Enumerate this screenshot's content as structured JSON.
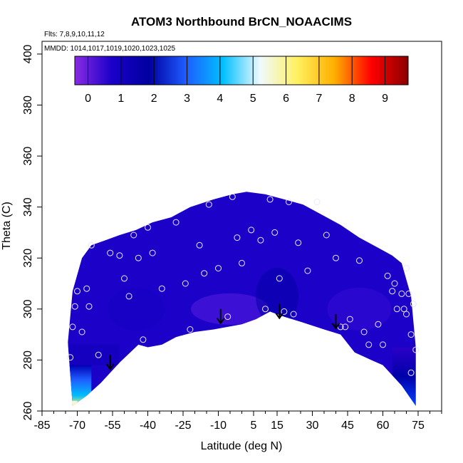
{
  "chart_data": {
    "type": "heatmap",
    "title": "ATOM3 Northbound BrCN_NOAACIMS",
    "subtitle_flights": "Flts: 7,8,9,10,11,12",
    "subtitle_dates": "MMDD: 1014,1017,1019,1020,1023,1025",
    "xlabel": "Latitude (deg N)",
    "ylabel": "Theta (C)",
    "xlim": [
      -85,
      85
    ],
    "ylim": [
      260,
      405
    ],
    "x_ticks": [
      -85,
      -70,
      -55,
      -40,
      -25,
      -10,
      5,
      15,
      30,
      45,
      60,
      75
    ],
    "y_ticks": [
      260,
      280,
      300,
      320,
      340,
      360,
      380,
      400
    ],
    "colorbar": {
      "ticks": [
        0,
        1,
        2,
        3,
        4,
        5,
        6,
        7,
        8,
        9
      ],
      "range": [
        -0.4,
        9.7
      ],
      "colors": [
        "#8a2be2",
        "#1a00c8",
        "#0000a0",
        "#1e5cff",
        "#00bfff",
        "#f0faff",
        "#fff060",
        "#ffb000",
        "#ff0000",
        "#8b0000"
      ]
    },
    "typical_value": 0.7,
    "envelope": {
      "top": [
        [
          -74,
          287
        ],
        [
          -72,
          307
        ],
        [
          -68,
          320
        ],
        [
          -64,
          325
        ],
        [
          -58,
          327
        ],
        [
          -52,
          329
        ],
        [
          -45,
          331
        ],
        [
          -38,
          334
        ],
        [
          -30,
          336
        ],
        [
          -22,
          340
        ],
        [
          -12,
          343
        ],
        [
          -4,
          345
        ],
        [
          2,
          346
        ],
        [
          10,
          345
        ],
        [
          18,
          343
        ],
        [
          26,
          341
        ],
        [
          34,
          337
        ],
        [
          42,
          333
        ],
        [
          50,
          328
        ],
        [
          58,
          324
        ],
        [
          64,
          321
        ],
        [
          68,
          318
        ],
        [
          72,
          305
        ],
        [
          74,
          285
        ]
      ],
      "bottom": [
        [
          74,
          262
        ],
        [
          68,
          270
        ],
        [
          60,
          278
        ],
        [
          55,
          280
        ],
        [
          48,
          283
        ],
        [
          42,
          290
        ],
        [
          35,
          292
        ],
        [
          25,
          295
        ],
        [
          18,
          297
        ],
        [
          12,
          299
        ],
        [
          6,
          296
        ],
        [
          0,
          294
        ],
        [
          -6,
          293
        ],
        [
          -12,
          292
        ],
        [
          -20,
          291
        ],
        [
          -28,
          289
        ],
        [
          -34,
          286
        ],
        [
          -40,
          285
        ],
        [
          -44,
          286
        ],
        [
          -52,
          279
        ],
        [
          -60,
          271
        ],
        [
          -66,
          266
        ],
        [
          -72,
          262
        ]
      ]
    },
    "low_region": [
      {
        "lat_range": [
          -74,
          -52
        ],
        "theta_range": [
          278,
          286
        ],
        "value": 1.0
      },
      {
        "lat_range": [
          -74,
          -64
        ],
        "theta_range": [
          262,
          278
        ],
        "value": 3.0
      },
      {
        "lat_range": [
          -74,
          -70
        ],
        "theta_range": [
          260,
          264
        ],
        "value": 5.5
      },
      {
        "lat_range": [
          64,
          74
        ],
        "theta_range": [
          262,
          285
        ],
        "value": 1.0
      }
    ],
    "profile_points": [
      [
        -73,
        281
      ],
      [
        -72,
        293
      ],
      [
        -71,
        301
      ],
      [
        -70,
        307
      ],
      [
        -68,
        291
      ],
      [
        -66,
        308
      ],
      [
        -65,
        301
      ],
      [
        -64,
        325
      ],
      [
        -61,
        282
      ],
      [
        -56,
        322
      ],
      [
        -52,
        321
      ],
      [
        -50,
        312
      ],
      [
        -48,
        305
      ],
      [
        -46,
        329
      ],
      [
        -44,
        320
      ],
      [
        -42,
        288
      ],
      [
        -40,
        332
      ],
      [
        -38,
        322
      ],
      [
        -34,
        308
      ],
      [
        -28,
        334
      ],
      [
        -24,
        310
      ],
      [
        -22,
        292
      ],
      [
        -18,
        325
      ],
      [
        -16,
        314
      ],
      [
        -14,
        341
      ],
      [
        -10,
        316
      ],
      [
        -6,
        297
      ],
      [
        -4,
        344
      ],
      [
        -2,
        328
      ],
      [
        0,
        318
      ],
      [
        4,
        331
      ],
      [
        8,
        327
      ],
      [
        10,
        300
      ],
      [
        12,
        343
      ],
      [
        14,
        330
      ],
      [
        16,
        312
      ],
      [
        18,
        299
      ],
      [
        20,
        342
      ],
      [
        22,
        298
      ],
      [
        24,
        326
      ],
      [
        28,
        315
      ],
      [
        32,
        342
      ],
      [
        36,
        329
      ],
      [
        40,
        320
      ],
      [
        42,
        293
      ],
      [
        44,
        293
      ],
      [
        46,
        296
      ],
      [
        50,
        319
      ],
      [
        52,
        291
      ],
      [
        54,
        286
      ],
      [
        58,
        294
      ],
      [
        60,
        286
      ],
      [
        62,
        313
      ],
      [
        64,
        307
      ],
      [
        65,
        310
      ],
      [
        66,
        300
      ],
      [
        68,
        306
      ],
      [
        69,
        300
      ],
      [
        70,
        298
      ],
      [
        70,
        316
      ],
      [
        71,
        306
      ],
      [
        72,
        290
      ],
      [
        72,
        275
      ],
      [
        73,
        302
      ],
      [
        74,
        284
      ]
    ],
    "arrows": [
      [
        -56,
        282
      ],
      [
        -9,
        300
      ],
      [
        16,
        302
      ],
      [
        40,
        298
      ]
    ]
  }
}
